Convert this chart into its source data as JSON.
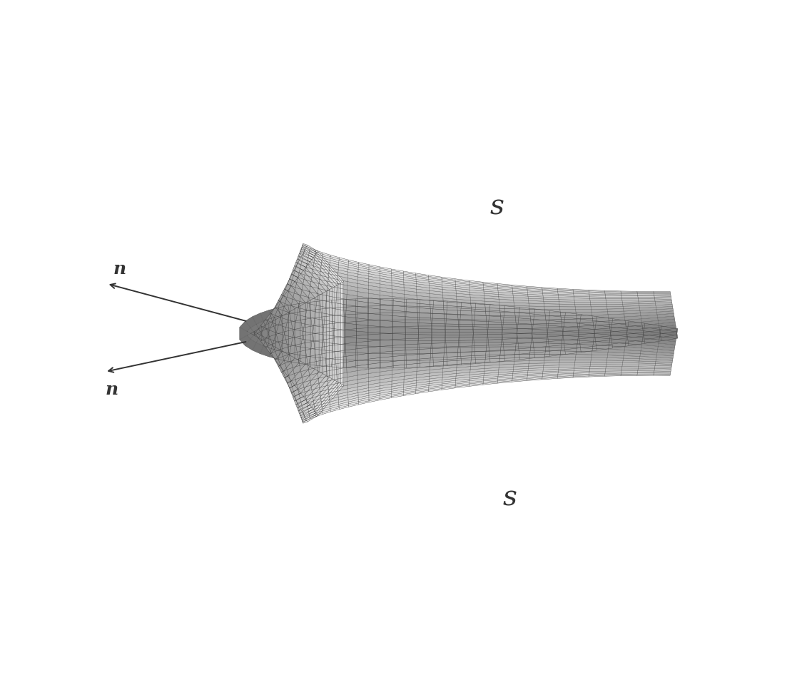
{
  "background_color": "#ffffff",
  "mesh_line_color": "#444444",
  "mesh_line_color_dense": "#333333",
  "arrow_color": "#333333",
  "label_color": "#333333",
  "label_s_upper": "s",
  "label_s_lower": "s",
  "label_n_upper": "n",
  "label_n_lower": "n",
  "n_radial": 24,
  "n_tangential": 70,
  "max_radial_dist": 1.8,
  "figsize": [
    11.31,
    9.81
  ],
  "dpi": 100
}
